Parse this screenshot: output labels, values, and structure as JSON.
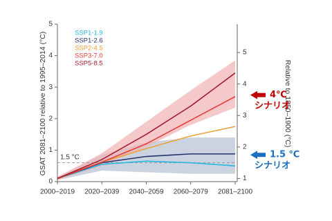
{
  "chart_data": {
    "type": "line",
    "categories": [
      "2000–2019",
      "2020–2039",
      "2040–2059",
      "2060–2079",
      "2081–2100"
    ],
    "ylabel": "GSAT 2081–2100 relative to 1995–2014 (°C)",
    "y2label": "Relative to 1850–1900 (°C)",
    "ylim": [
      0,
      5
    ],
    "yticks": [
      0,
      1,
      2,
      3,
      4,
      5
    ],
    "y2lim": [
      0.9,
      5.9
    ],
    "y2ticks": [
      1,
      2,
      3,
      4,
      5
    ],
    "series": [
      {
        "name": "SSP1-1.9",
        "color": "#2cb5e0",
        "values": [
          0.1,
          0.55,
          0.65,
          0.6,
          0.5
        ]
      },
      {
        "name": "SSP1-2.6",
        "color": "#24336e",
        "values": [
          0.1,
          0.6,
          0.8,
          0.88,
          0.88
        ],
        "band": {
          "color": "#b8c4d4",
          "low": [
            0.05,
            0.35,
            0.3,
            0.25,
            0.25
          ],
          "high": [
            0.15,
            0.85,
            1.25,
            1.4,
            1.4
          ]
        }
      },
      {
        "name": "SSP2-4.5",
        "color": "#eba33a",
        "values": [
          0.1,
          0.62,
          1.05,
          1.45,
          1.75
        ]
      },
      {
        "name": "SSP3-7.0",
        "color": "#e2403a",
        "values": [
          0.1,
          0.62,
          1.2,
          1.95,
          2.7
        ]
      },
      {
        "name": "SSP5-8.5",
        "color": "#a51f2b",
        "values": [
          0.1,
          0.7,
          1.5,
          2.4,
          3.45
        ],
        "band": {
          "color": "#f2b6b8",
          "low": [
            0.05,
            0.5,
            1.1,
            1.8,
            2.35
          ],
          "high": [
            0.15,
            0.9,
            1.9,
            2.9,
            3.85
          ]
        }
      }
    ],
    "reference_line": {
      "value": 0.6,
      "label": "1.5 °C"
    },
    "annotations": [
      {
        "lines": [
          "4℃",
          "シナリオ"
        ],
        "color": "#c00000",
        "y": 2.75
      },
      {
        "lines": [
          "1.5 ℃",
          "シナリオ"
        ],
        "color": "#1a6fc0",
        "y": 0.85
      }
    ]
  }
}
